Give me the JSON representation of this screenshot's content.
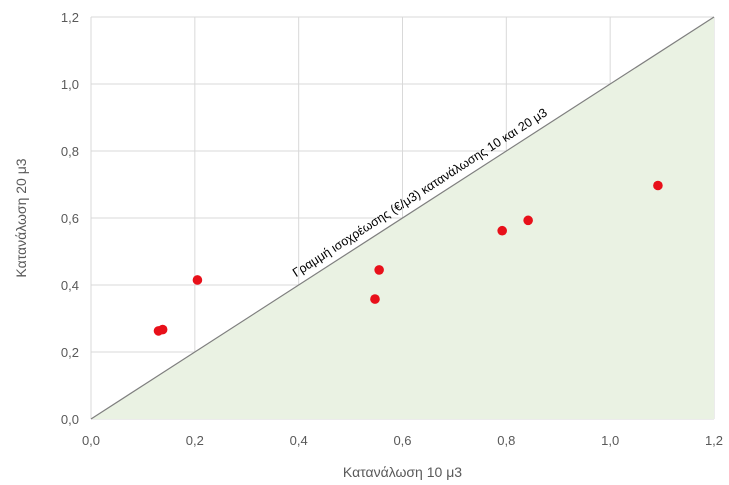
{
  "chart_data": {
    "type": "scatter",
    "title": "",
    "xlabel": "Κατανάλωση  10 μ3",
    "ylabel": "Κατανάλωση  20 μ3",
    "xlim": [
      0,
      1.2
    ],
    "ylim": [
      0,
      1.2
    ],
    "xticks": [
      "0,0",
      "0,2",
      "0,4",
      "0,6",
      "0,8",
      "1,0",
      "1,2"
    ],
    "yticks": [
      "0,0",
      "0,2",
      "0,4",
      "0,6",
      "0,8",
      "1,0",
      "1,2"
    ],
    "grid": true,
    "legend": "none",
    "series": [
      {
        "points": [
          {
            "x": 0.13,
            "y": 0.263
          },
          {
            "x": 0.138,
            "y": 0.267
          },
          {
            "x": 0.205,
            "y": 0.415
          },
          {
            "x": 0.547,
            "y": 0.358
          },
          {
            "x": 0.555,
            "y": 0.445
          },
          {
            "x": 0.792,
            "y": 0.562
          },
          {
            "x": 0.842,
            "y": 0.593
          },
          {
            "x": 1.092,
            "y": 0.697
          }
        ],
        "color": "#e8101a"
      }
    ],
    "annotation": "Γραμμή ισοχρέωσης (€/μ3) κατανάλωσης 10 και 20 μ3",
    "colors": {
      "point": "#e8101a",
      "shade": "#eaf2e3",
      "grid": "#d9d9d9",
      "diagonal": "#7f7f7f"
    }
  }
}
